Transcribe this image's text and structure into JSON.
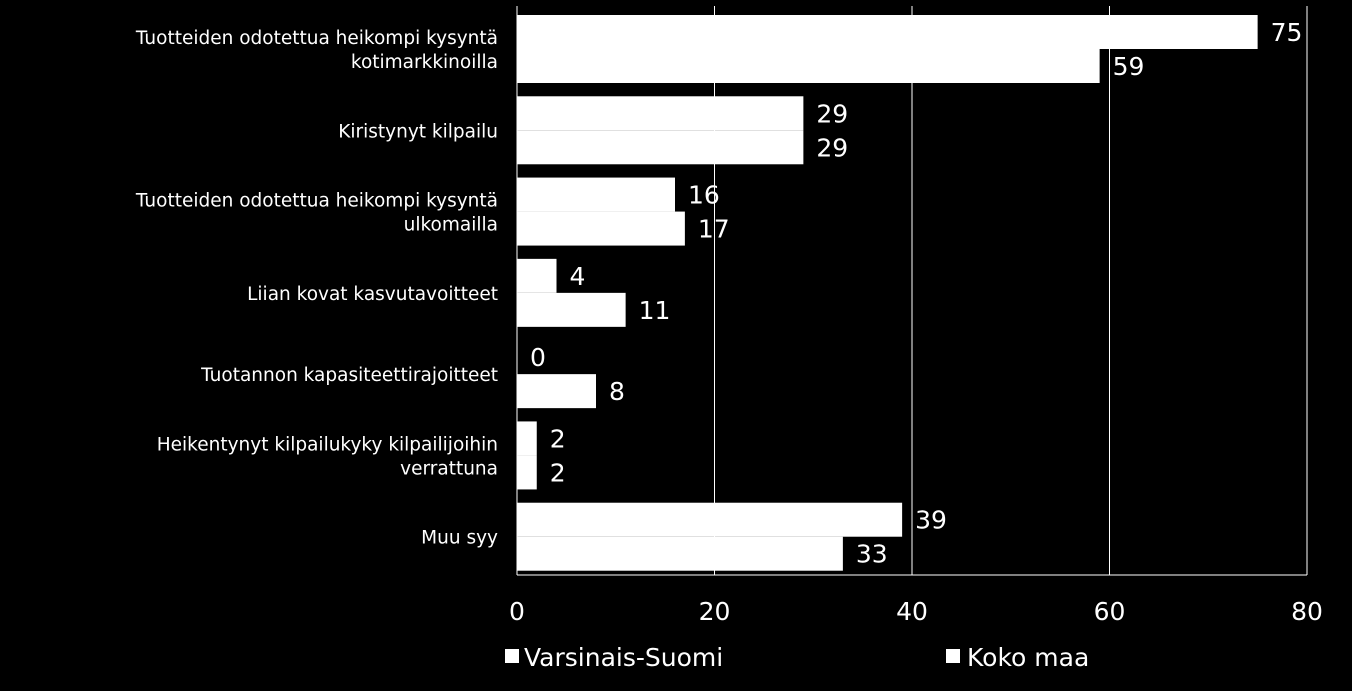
{
  "chart_data": {
    "type": "bar",
    "orientation": "horizontal",
    "categories": [
      [
        "Tuotteiden odotettua heikompi kysyntä",
        "kotimarkkinoilla"
      ],
      [
        "Kiristynyt kilpailu"
      ],
      [
        "Tuotteiden odotettua heikompi kysyntä",
        "ulkomailla"
      ],
      [
        "Liian kovat kasvutavoitteet"
      ],
      [
        "Tuotannon kapasiteettirajoitteet"
      ],
      [
        "Heikentynyt kilpailukyky kilpailijoihin",
        "verrattuna"
      ],
      [
        "Muu syy"
      ]
    ],
    "series": [
      {
        "name": "Varsinais-Suomi",
        "values": [
          75,
          29,
          16,
          4,
          0,
          2,
          39
        ]
      },
      {
        "name": "Koko maa",
        "values": [
          59,
          29,
          17,
          11,
          8,
          2,
          33
        ]
      }
    ],
    "xlim": [
      0,
      80
    ],
    "xticks": [
      0,
      20,
      40,
      60,
      80
    ],
    "grid": true,
    "legend_position": "bottom",
    "colors": {
      "background": "#000000",
      "bar": "#ffffff",
      "text": "#ffffff",
      "grid": "#ffffff"
    }
  }
}
